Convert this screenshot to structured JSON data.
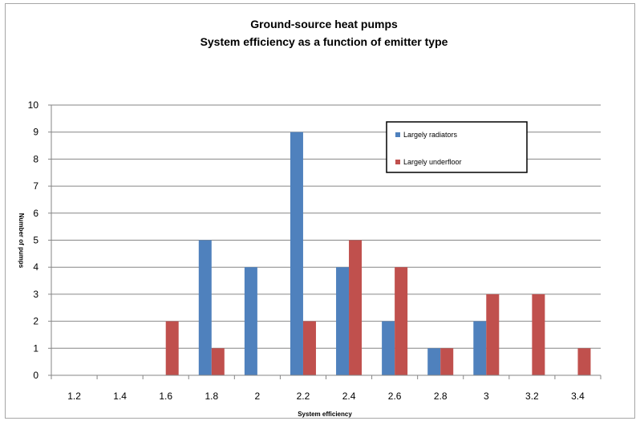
{
  "chart_data": {
    "type": "bar",
    "title_line1": "Ground-source heat pumps",
    "title_line2": "System efficiency as a function of emitter type",
    "xlabel": "System efficiency",
    "ylabel": "Number of pumps",
    "categories": [
      "1.2",
      "1.4",
      "1.6",
      "1.8",
      "2",
      "2.2",
      "2.4",
      "2.6",
      "2.8",
      "3",
      "3.2",
      "3.4"
    ],
    "series": [
      {
        "name": "Largely radiators",
        "color": "#4f81bd",
        "values": [
          0,
          0,
          0,
          5,
          4,
          9,
          4,
          2,
          1,
          2,
          0,
          0
        ]
      },
      {
        "name": "Largely underfloor",
        "color": "#c0504d",
        "values": [
          0,
          0,
          2,
          1,
          0,
          2,
          5,
          4,
          1,
          3,
          3,
          1
        ]
      }
    ],
    "ylim": [
      0,
      10
    ],
    "yticks": [
      "0",
      "1",
      "2",
      "3",
      "4",
      "5",
      "6",
      "7",
      "8",
      "9",
      "10"
    ],
    "grid": true,
    "legend_position": "top-right"
  }
}
